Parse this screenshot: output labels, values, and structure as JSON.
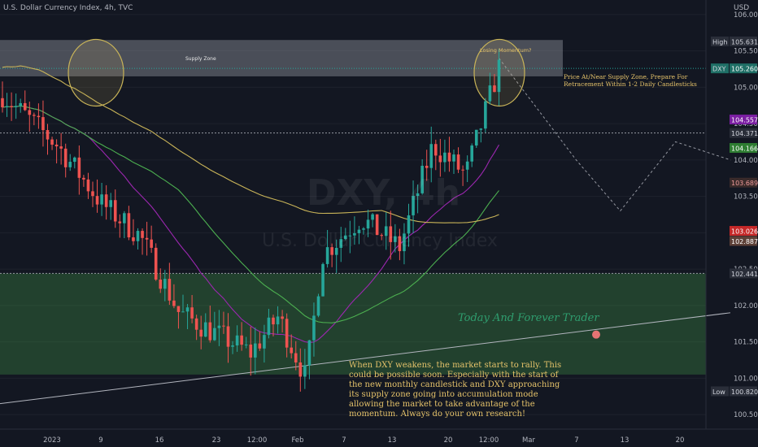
{
  "header": {
    "title": "U.S. Dollar Currency Index, 4h, TVC",
    "currency": "USD"
  },
  "watermark": {
    "symbol": "DXY, 4h",
    "name": "U.S. Dollar Currency Index"
  },
  "annotations": {
    "supply_zone": "Supply Zone",
    "losing_momentum": "Losing Momentum?",
    "price_note": "Price At/Near Supply Zone, Prepare For Retracement Within 1-2 Daily Candlesticks",
    "signature": "Today And Forever Trader",
    "description": "When DXY weakens, the market starts to rally. This could be possible soon. Especially with the start of the new monthly candlestick and DXY approaching its supply zone going into accumulation mode allowing the market to take advantage of the momentum. Always do your own research!"
  },
  "chart_data": {
    "type": "candlestick",
    "symbol": "DXY",
    "timeframe": "4h",
    "ylim": [
      100.3,
      106.2
    ],
    "y_ticks": [
      100.5,
      101.0,
      101.5,
      102.0,
      102.5,
      103.0,
      103.5,
      104.0,
      104.5,
      105.0,
      105.5,
      106.0
    ],
    "x_ticks": [
      "2023",
      "9",
      "16",
      "23",
      "12:00",
      "Feb",
      "7",
      "13",
      "20",
      "12:00",
      "Mar",
      "7",
      "13",
      "20"
    ],
    "price_labels": [
      {
        "label": "High",
        "value": 105.631
      },
      {
        "label": "DXY",
        "value": 105.26
      },
      {
        "label": "",
        "value": 104.557
      },
      {
        "label": "",
        "value": 104.371
      },
      {
        "label": "",
        "value": 104.166
      },
      {
        "label": "",
        "value": 103.689
      },
      {
        "label": "",
        "value": 103.026
      },
      {
        "label": "",
        "value": 102.887
      },
      {
        "label": "",
        "value": 102.441
      },
      {
        "label": "Low",
        "value": 100.82
      }
    ],
    "zones": [
      {
        "name": "Supply Zone",
        "from": 105.15,
        "to": 105.65
      },
      {
        "name": "",
        "from": 101.05,
        "to": 102.44
      }
    ],
    "levels": [
      105.26,
      104.371,
      102.441
    ],
    "key_prices": [
      [
        0,
        104.9
      ],
      [
        10,
        104.2
      ],
      [
        18,
        103.4
      ],
      [
        25,
        102.95
      ],
      [
        32,
        101.9
      ],
      [
        39,
        101.6
      ],
      [
        45,
        101.35
      ],
      [
        50,
        101.85
      ],
      [
        55,
        101.0
      ],
      [
        58,
        102.7
      ],
      [
        65,
        103.2
      ],
      [
        72,
        102.8
      ],
      [
        78,
        104.2
      ],
      [
        84,
        103.8
      ],
      [
        90,
        105.27
      ]
    ],
    "projection": [
      [
        90,
        105.4
      ],
      [
        104,
        104.0
      ],
      [
        112,
        103.3
      ],
      [
        122,
        104.25
      ],
      [
        132,
        104.0
      ]
    ]
  },
  "colors": {
    "background": "#131722",
    "up": "#26a69a",
    "down": "#ef5350",
    "supply_zone": "rgba(178,181,190,0.35)",
    "demand_zone": "rgba(76,175,80,0.28)",
    "ma_fast": "#9c27b0",
    "ma_mid": "#4caf50",
    "ma_slow": "#c9b458",
    "annotation": "#e6c36a"
  }
}
